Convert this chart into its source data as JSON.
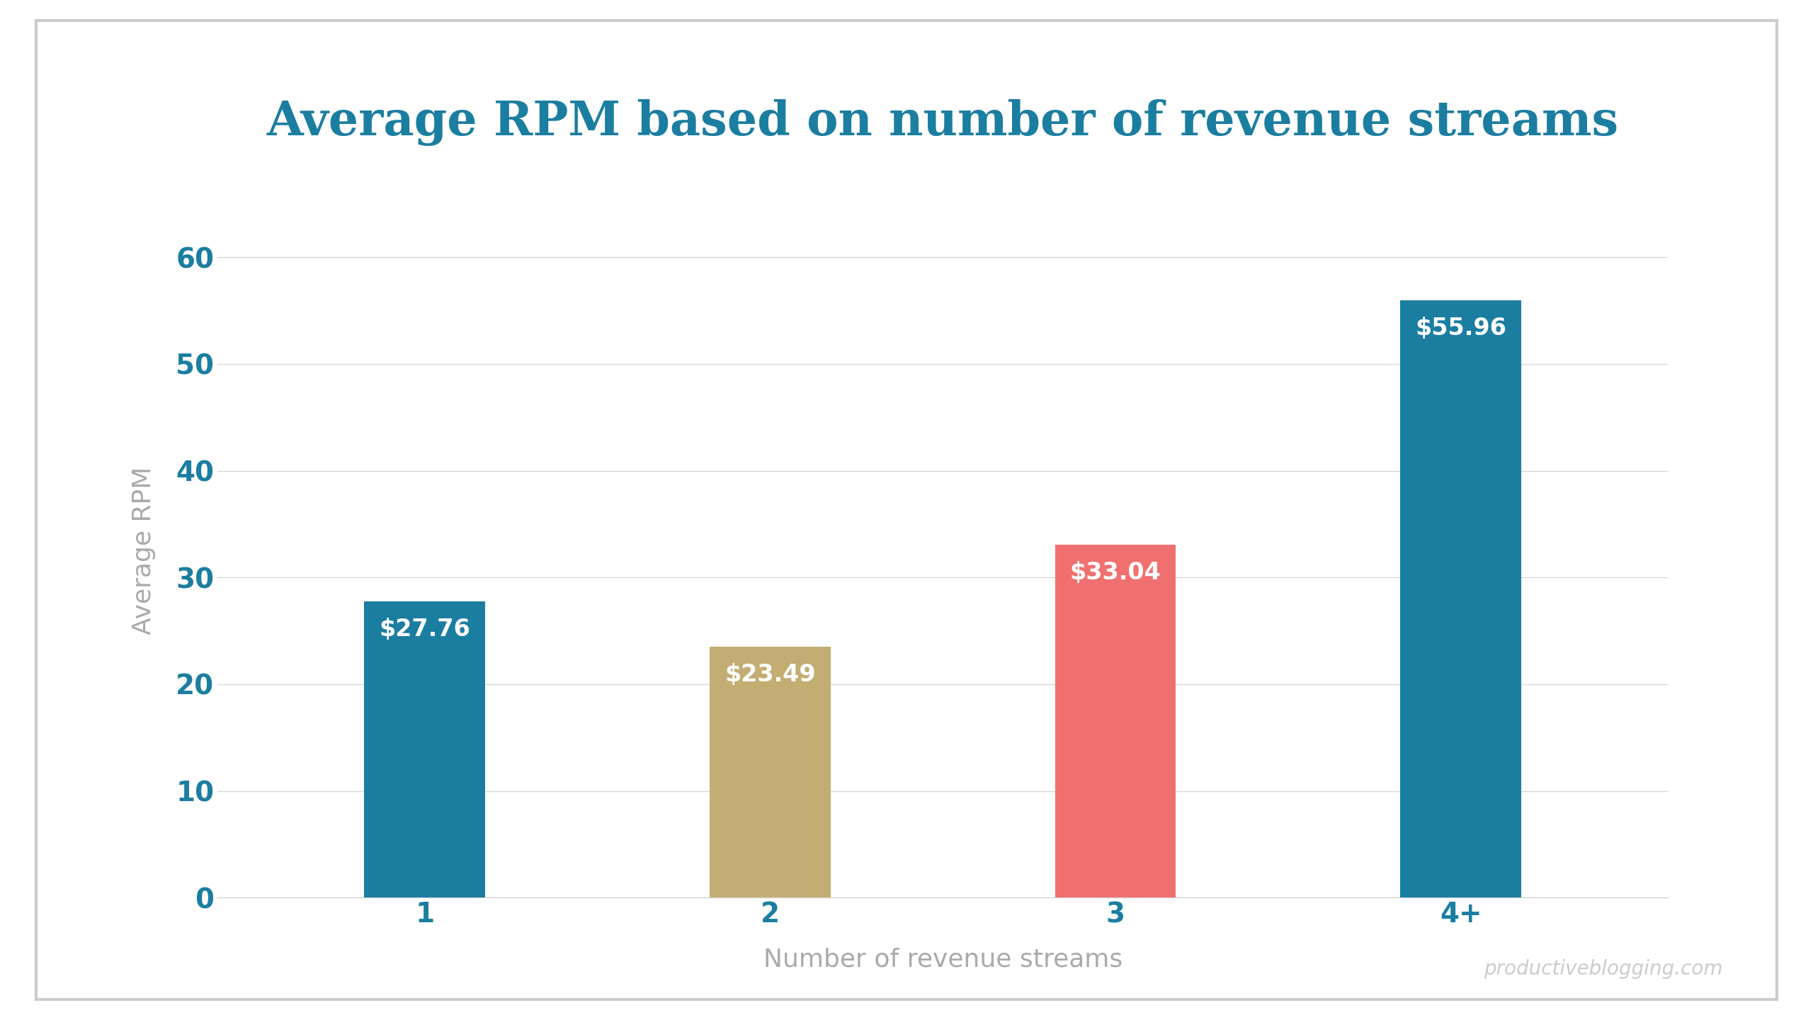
{
  "title": "Average RPM based on number of revenue streams",
  "xlabel": "Number of revenue streams",
  "ylabel": "Average RPM",
  "categories": [
    "1",
    "2",
    "3",
    "4+"
  ],
  "values": [
    27.76,
    23.49,
    33.04,
    55.96
  ],
  "bar_colors": [
    "#1b7ea1",
    "#c4ad72",
    "#f07070",
    "#1b7ea1"
  ],
  "bar_labels": [
    "$27.76",
    "$23.49",
    "$33.04",
    "$55.96"
  ],
  "ylim": [
    0,
    65
  ],
  "yticks": [
    0,
    10,
    20,
    30,
    40,
    50,
    60
  ],
  "background_color": "#ffffff",
  "outer_background": "#f0f0f0",
  "title_color": "#1b7ea1",
  "axis_label_color": "#aaaaaa",
  "tick_color": "#1b7ea1",
  "grid_color": "#d8d8d8",
  "label_text_color": "#ffffff",
  "watermark": "productiveblogging.com",
  "watermark_color": "#cccccc",
  "title_fontsize": 48,
  "axis_label_fontsize": 26,
  "tick_fontsize": 28,
  "bar_label_fontsize": 24,
  "watermark_fontsize": 20,
  "bar_width": 0.35
}
